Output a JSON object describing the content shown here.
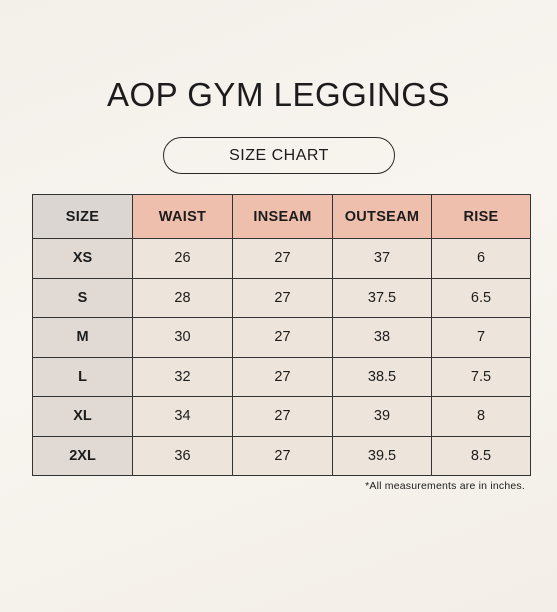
{
  "header": {
    "title": "AOP GYM LEGGINGS",
    "subtitle": "SIZE CHART"
  },
  "table": {
    "columns": [
      "SIZE",
      "WAIST",
      "INSEAM",
      "OUTSEAM",
      "RISE"
    ],
    "rows": [
      [
        "XS",
        "26",
        "27",
        "37",
        "6"
      ],
      [
        "S",
        "28",
        "27",
        "37.5",
        "6.5"
      ],
      [
        "M",
        "30",
        "27",
        "38",
        "7"
      ],
      [
        "L",
        "32",
        "27",
        "38.5",
        "7.5"
      ],
      [
        "XL",
        "34",
        "27",
        "39",
        "8"
      ],
      [
        "2XL",
        "36",
        "27",
        "39.5",
        "8.5"
      ]
    ]
  },
  "footnote": "*All measurements are in inches."
}
